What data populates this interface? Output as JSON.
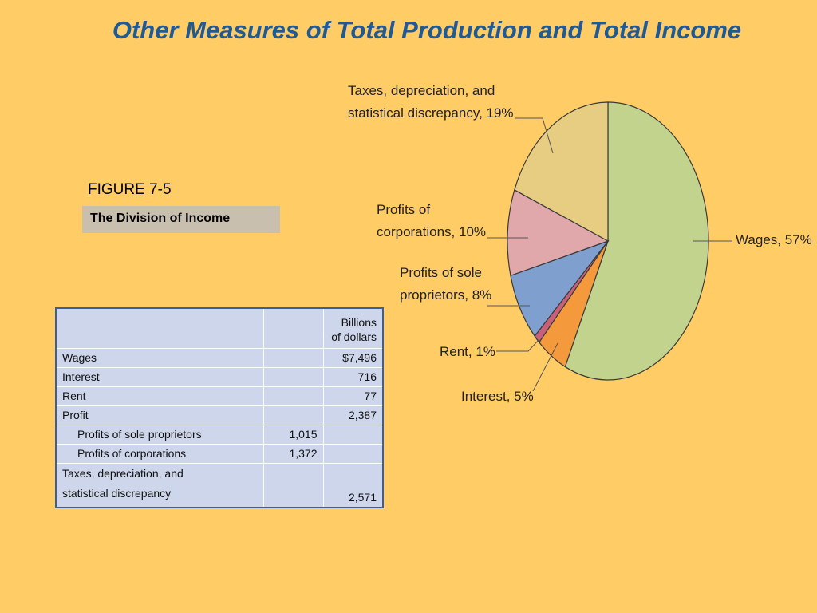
{
  "title": "Other Measures of Total Production and Total Income",
  "figure": {
    "label": "FIGURE 7-5",
    "caption": "The Division of Income"
  },
  "table": {
    "header_line1": "Billions",
    "header_line2": "of dollars",
    "rows": [
      {
        "label": "Wages",
        "sub": "",
        "total": "$7,496"
      },
      {
        "label": "Interest",
        "sub": "",
        "total": "716"
      },
      {
        "label": "Rent",
        "sub": "",
        "total": "77"
      },
      {
        "label": "Profit",
        "sub": "",
        "total": "2,387"
      },
      {
        "label": "Profits of sole proprietors",
        "sub": "1,015",
        "total": ""
      },
      {
        "label": "Profits of corporations",
        "sub": "1,372",
        "total": ""
      },
      {
        "label_line1": "Taxes, depreciation, and",
        "label_line2": "statistical discrepancy",
        "sub": "",
        "total": "2,571"
      }
    ]
  },
  "chart_data": {
    "type": "pie",
    "slices": [
      {
        "name": "Wages",
        "value": 57,
        "label_lines": [
          "Wages, 57%"
        ],
        "color": "#c2d38e"
      },
      {
        "name": "Interest",
        "value": 5,
        "label_lines": [
          "Interest, 5%"
        ],
        "color": "#f59a3c"
      },
      {
        "name": "Rent",
        "value": 1,
        "label_lines": [
          "Rent, 1%"
        ],
        "color": "#c9607a"
      },
      {
        "name": "Profits of sole proprietors",
        "value": 8,
        "label_lines": [
          "Profits of sole",
          "proprietors, 8%"
        ],
        "color": "#7f9fcf"
      },
      {
        "name": "Profits of corporations",
        "value": 10,
        "label_lines": [
          "Profits of",
          "corporations, 10%"
        ],
        "color": "#e0a8ab"
      },
      {
        "name": "Taxes, depreciation, and statistical discrepancy",
        "value": 19,
        "label_lines": [
          "Taxes, depreciation, and",
          "statistical discrepancy, 19%"
        ],
        "color": "#e6cd82"
      }
    ],
    "start": "12 o'clock",
    "direction": "clockwise"
  }
}
